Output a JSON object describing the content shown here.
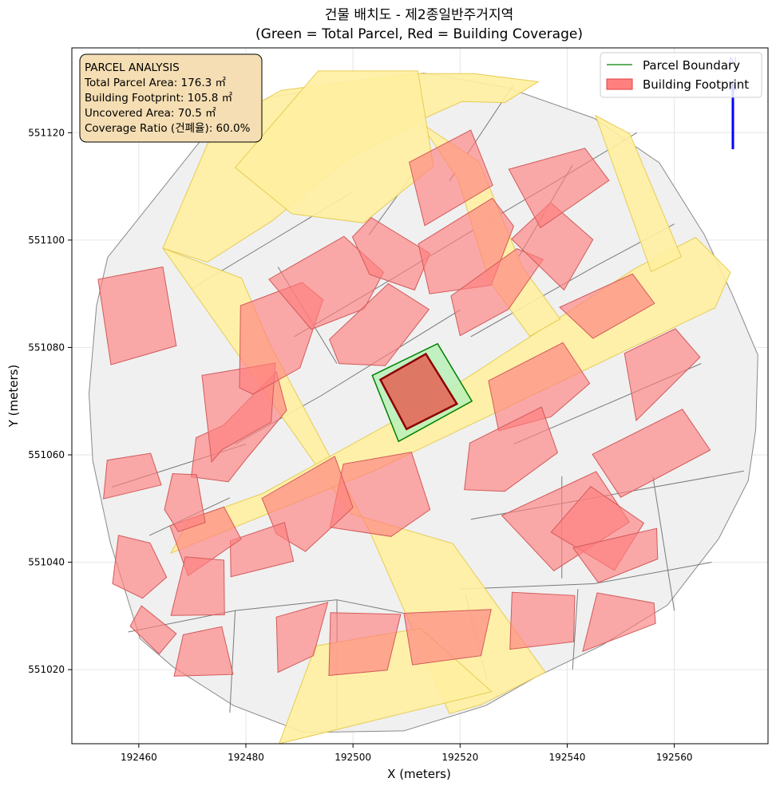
{
  "chart_data": {
    "type": "map",
    "title_line1": "건물 배치도 - 제2종일반주거지역",
    "title_line2": "(Green = Total Parcel, Red = Building Coverage)",
    "xlabel": "X (meters)",
    "ylabel": "Y (meters)",
    "xlim": [
      192447.5,
      192577.5
    ],
    "ylim": [
      551006.2,
      551135.8
    ],
    "x_ticks": [
      192460,
      192480,
      192500,
      192520,
      192540,
      192560
    ],
    "y_ticks": [
      551020,
      551040,
      551060,
      551080,
      551100,
      551120
    ],
    "grid": true,
    "legend_position": "top-right",
    "legend": [
      {
        "label": "Parcel Boundary",
        "color": "#008000",
        "kind": "line"
      },
      {
        "label": "Building Footprint",
        "color": "#ff7f7f",
        "kind": "patch"
      }
    ],
    "info_box": {
      "position": "top-left",
      "lines": [
        "PARCEL ANALYSIS",
        "Total Parcel Area: 176.3 ㎡",
        "Building Footprint: 105.8 ㎡",
        "Uncovered Area: 70.5 ㎡",
        "Coverage Ratio (건폐율): 60.0%"
      ]
    },
    "north_arrow": {
      "label": "N",
      "color": "#0000ff"
    },
    "target_parcel": {
      "area_m2": 176.3,
      "boundary": [
        [
          192503.6,
          551074.8
        ],
        [
          192515.8,
          551080.7
        ],
        [
          192522.2,
          551070.0
        ],
        [
          192508.5,
          551062.5
        ]
      ],
      "building": [
        [
          192505.1,
          551074.0
        ],
        [
          192513.6,
          551078.8
        ],
        [
          192519.4,
          551069.5
        ],
        [
          192510.0,
          551064.8
        ]
      ],
      "building_area_m2": 105.8,
      "coverage_ratio_pct": 60.0
    },
    "roads": [
      [
        [
          192464.5,
          551098.5
        ],
        [
          192474.2,
          551121.1
        ],
        [
          192486.6,
          551127.9
        ],
        [
          192510.6,
          551131.0
        ],
        [
          192522.6,
          551131.0
        ],
        [
          192534.6,
          551129.5
        ],
        [
          192528.3,
          551125.6
        ],
        [
          192520.3,
          551125.8
        ],
        [
          192514.2,
          551123.1
        ],
        [
          192499.1,
          551115.2
        ],
        [
          192484.9,
          551103.6
        ],
        [
          192472.8,
          551095.9
        ]
      ],
      [
        [
          192464.5,
          551098.5
        ],
        [
          192479.2,
          551092.9
        ],
        [
          192484.4,
          551080.8
        ],
        [
          192503.1,
          551045.8
        ],
        [
          192518.0,
          551011.8
        ],
        [
          192524.0,
          551013.5
        ],
        [
          192535.9,
          551019.5
        ],
        [
          192518.6,
          551043.5
        ],
        [
          192499.5,
          551049.1
        ]
      ],
      [
        [
          192466.0,
          551041.7
        ],
        [
          192504.5,
          551057.3
        ],
        [
          192567.6,
          551087.4
        ],
        [
          192570.5,
          551094.0
        ],
        [
          192564.0,
          551100.5
        ],
        [
          192552.8,
          551094.8
        ],
        [
          192515.5,
          551070.6
        ],
        [
          192483.1,
          551052.8
        ],
        [
          192469.4,
          551047.9
        ]
      ],
      [
        [
          192512.5,
          551121.9
        ],
        [
          192523.5,
          551114.6
        ],
        [
          192531.6,
          551095.0
        ],
        [
          192538.7,
          551085.3
        ],
        [
          192533.0,
          551082.1
        ],
        [
          192525.4,
          551092.5
        ],
        [
          192519.6,
          551111.4
        ]
      ],
      [
        [
          192545.3,
          551123.2
        ],
        [
          192551.7,
          551119.8
        ],
        [
          192561.3,
          551096.9
        ],
        [
          192555.7,
          551094.1
        ]
      ],
      [
        [
          192493.5,
          551131.5
        ],
        [
          192512.1,
          551131.5
        ],
        [
          192515.0,
          551113.8
        ],
        [
          192502.0,
          551103.2
        ],
        [
          192488.6,
          551104.9
        ],
        [
          192478.0,
          551113.5
        ]
      ],
      [
        [
          192486.2,
          551006.2
        ],
        [
          192525.9,
          551015.9
        ],
        [
          192512.6,
          551027.7
        ],
        [
          192493.0,
          551024.4
        ]
      ]
    ],
    "parcels": [
      [
        [
          192454.2,
          551096.8
        ],
        [
          192473.6,
          551121.1
        ],
        [
          192484.6,
          551126.6
        ],
        [
          192513.2,
          551131.1
        ],
        [
          192528.4,
          551128.5
        ],
        [
          192545.0,
          551122.7
        ],
        [
          192557.2,
          551114.4
        ],
        [
          192565.6,
          551101.0
        ],
        [
          192570.8,
          551089.9
        ],
        [
          192575.6,
          551078.6
        ],
        [
          192575.2,
          551064.7
        ],
        [
          192573.8,
          551055.2
        ],
        [
          192568.3,
          551044.4
        ],
        [
          192558.7,
          551032.0
        ],
        [
          192546.4,
          551024.5
        ],
        [
          192534.1,
          551018.6
        ],
        [
          192524.8,
          551013.3
        ],
        [
          192509.5,
          551008.6
        ],
        [
          192490.8,
          551008.3
        ],
        [
          192477.7,
          551013.3
        ],
        [
          192466.4,
          551020.5
        ],
        [
          192460.2,
          551025.8
        ],
        [
          192454.7,
          551043.6
        ],
        [
          192451.4,
          551058.9
        ],
        [
          192450.7,
          551071.4
        ],
        [
          192452.1,
          551087.8
        ]
      ]
    ],
    "buildings": [
      [
        [
          192454.8,
          551076.8
        ],
        [
          192467.0,
          551080.3
        ],
        [
          192464.5,
          551095.0
        ],
        [
          192452.4,
          551092.7
        ]
      ],
      [
        [
          192470.7,
          551063.2
        ],
        [
          192475.8,
          551065.5
        ],
        [
          192485.7,
          551075.5
        ],
        [
          192487.6,
          551068.3
        ],
        [
          192480.2,
          551059.4
        ],
        [
          192476.7,
          551055.0
        ],
        [
          192469.8,
          551055.9
        ]
      ],
      [
        [
          192471.8,
          551074.8
        ],
        [
          192485.5,
          551077.1
        ],
        [
          192484.7,
          551066.1
        ],
        [
          192475.6,
          551061.0
        ],
        [
          192473.6,
          551058.7
        ]
      ],
      [
        [
          192479.0,
          551087.8
        ],
        [
          192490.5,
          551092.1
        ],
        [
          192494.4,
          551088.9
        ],
        [
          192490.1,
          551076.2
        ],
        [
          192481.3,
          551071.3
        ],
        [
          192478.8,
          551072.5
        ]
      ],
      [
        [
          192484.3,
          551092.7
        ],
        [
          192498.3,
          551100.7
        ],
        [
          192505.7,
          551094.0
        ],
        [
          192502.1,
          551087.2
        ],
        [
          192492.2,
          551083.4
        ]
      ],
      [
        [
          192495.6,
          551081.5
        ],
        [
          192506.6,
          551091.9
        ],
        [
          192514.2,
          551087.1
        ],
        [
          192506.0,
          551076.6
        ],
        [
          192497.4,
          551077.0
        ]
      ],
      [
        [
          192499.9,
          551100.6
        ],
        [
          192503.4,
          551104.2
        ],
        [
          192514.4,
          551097.5
        ],
        [
          192511.5,
          551090.7
        ],
        [
          192503.1,
          551093.6
        ]
      ],
      [
        [
          192510.5,
          551114.5
        ],
        [
          192522.0,
          551120.5
        ],
        [
          192526.1,
          551110.2
        ],
        [
          192513.4,
          551102.7
        ]
      ],
      [
        [
          192512.2,
          551099.3
        ],
        [
          192526.0,
          551107.8
        ],
        [
          192530.0,
          551102.6
        ],
        [
          192525.8,
          551091.6
        ],
        [
          192514.3,
          551090.0
        ]
      ],
      [
        [
          192518.3,
          551089.6
        ],
        [
          192530.6,
          551098.4
        ],
        [
          192535.5,
          551096.4
        ],
        [
          192529.0,
          551087.1
        ],
        [
          192520.0,
          551082.2
        ]
      ],
      [
        [
          192525.3,
          551073.8
        ],
        [
          192539.2,
          551080.9
        ],
        [
          192544.2,
          551073.3
        ],
        [
          192537.0,
          551067.1
        ],
        [
          192527.2,
          551064.5
        ]
      ],
      [
        [
          192521.8,
          551062.2
        ],
        [
          192535.2,
          551068.9
        ],
        [
          192538.2,
          551060.4
        ],
        [
          192528.3,
          551053.2
        ],
        [
          192520.8,
          551053.5
        ]
      ],
      [
        [
          192527.8,
          551048.7
        ],
        [
          192545.4,
          551056.9
        ],
        [
          192551.6,
          551047.5
        ],
        [
          192537.5,
          551038.4
        ]
      ],
      [
        [
          192537.0,
          551045.6
        ],
        [
          192548.8,
          551038.5
        ],
        [
          192554.3,
          551047.3
        ],
        [
          192544.4,
          551054.1
        ]
      ],
      [
        [
          192541.1,
          551042.7
        ],
        [
          192556.7,
          551046.3
        ],
        [
          192556.9,
          551040.6
        ],
        [
          192545.8,
          551036.2
        ]
      ],
      [
        [
          192544.7,
          551060.1
        ],
        [
          192561.5,
          551068.5
        ],
        [
          192566.7,
          551060.9
        ],
        [
          192550.0,
          551052.1
        ]
      ],
      [
        [
          192550.7,
          551078.9
        ],
        [
          192560.2,
          551083.5
        ],
        [
          192564.8,
          551078.2
        ],
        [
          192552.9,
          551066.4
        ]
      ],
      [
        [
          192538.6,
          551087.5
        ],
        [
          192552.2,
          551093.7
        ],
        [
          192556.3,
          551088.2
        ],
        [
          192544.8,
          551081.7
        ]
      ],
      [
        [
          192529.6,
          551100.2
        ],
        [
          192536.9,
          551107.0
        ],
        [
          192544.8,
          551100.1
        ],
        [
          192539.4,
          551090.7
        ]
      ],
      [
        [
          192529.1,
          551113.2
        ],
        [
          192543.3,
          551117.1
        ],
        [
          192547.8,
          551111.1
        ],
        [
          192535.0,
          551102.3
        ]
      ],
      [
        [
          192495.7,
          551046.5
        ],
        [
          192507.1,
          551044.8
        ],
        [
          192514.4,
          551049.8
        ],
        [
          192510.9,
          551060.5
        ],
        [
          192498.2,
          551058.3
        ]
      ],
      [
        [
          192483.0,
          551051.9
        ],
        [
          192496.6,
          551059.7
        ],
        [
          192500.0,
          551050.2
        ],
        [
          192491.1,
          551042.0
        ],
        [
          192485.7,
          551045.3
        ]
      ],
      [
        [
          192477.1,
          551044.0
        ],
        [
          192487.2,
          551047.4
        ],
        [
          192488.9,
          551040.2
        ],
        [
          192477.2,
          551037.3
        ]
      ],
      [
        [
          192465.8,
          551046.8
        ],
        [
          192475.9,
          551050.3
        ],
        [
          192479.1,
          551044.3
        ],
        [
          192469.2,
          551037.5
        ]
      ],
      [
        [
          192466.3,
          551056.5
        ],
        [
          192470.8,
          551056.3
        ],
        [
          192472.4,
          551047.4
        ],
        [
          192467.4,
          551045.7
        ],
        [
          192464.8,
          551049.8
        ]
      ],
      [
        [
          192456.2,
          551045.0
        ],
        [
          192462.1,
          551043.6
        ],
        [
          192465.2,
          551037.2
        ],
        [
          192460.7,
          551033.3
        ],
        [
          192455.1,
          551036.0
        ]
      ],
      [
        [
          192466.0,
          551030.1
        ],
        [
          192476.0,
          551030.2
        ],
        [
          192475.9,
          551040.4
        ],
        [
          192468.7,
          551041.0
        ]
      ],
      [
        [
          192466.6,
          551018.8
        ],
        [
          192477.6,
          551019.1
        ],
        [
          192475.5,
          551028.0
        ],
        [
          192468.3,
          551026.5
        ]
      ],
      [
        [
          192486.0,
          551019.5
        ],
        [
          192492.6,
          551022.6
        ],
        [
          192495.3,
          551032.5
        ],
        [
          192485.7,
          551029.8
        ]
      ],
      [
        [
          192495.5,
          551018.9
        ],
        [
          192506.4,
          551019.9
        ],
        [
          192508.9,
          551030.3
        ],
        [
          192495.8,
          551030.6
        ]
      ],
      [
        [
          192511.1,
          551020.9
        ],
        [
          192523.9,
          551022.6
        ],
        [
          192525.8,
          551031.2
        ],
        [
          192509.5,
          551030.5
        ]
      ],
      [
        [
          192529.3,
          551023.8
        ],
        [
          192541.2,
          551025.2
        ],
        [
          192541.4,
          551033.8
        ],
        [
          192529.7,
          551034.4
        ]
      ],
      [
        [
          192542.9,
          551023.4
        ],
        [
          192556.5,
          551028.6
        ],
        [
          192556.2,
          551032.4
        ],
        [
          192545.6,
          551034.3
        ]
      ],
      [
        [
          192453.4,
          551051.8
        ],
        [
          192464.2,
          551054.4
        ],
        [
          192462.2,
          551060.3
        ],
        [
          192454.1,
          551059.0
        ]
      ],
      [
        [
          192458.4,
          551028.1
        ],
        [
          192463.8,
          551022.9
        ],
        [
          192467.0,
          551026.7
        ],
        [
          192460.5,
          551031.9
        ]
      ]
    ]
  }
}
